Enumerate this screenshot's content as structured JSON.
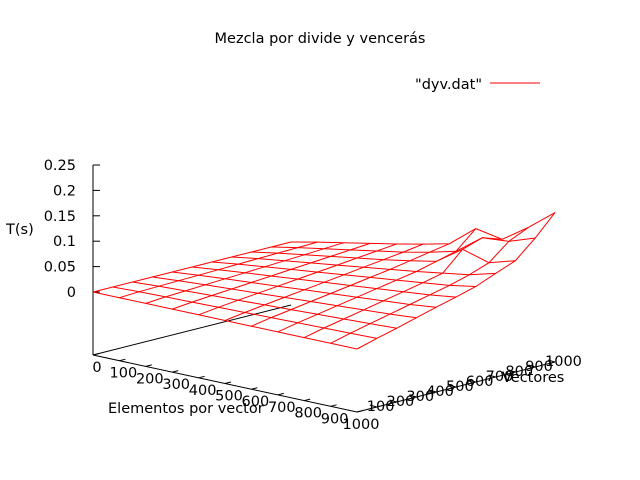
{
  "chart_data": {
    "type": "surface",
    "title": "Mezcla por divide y vencerás",
    "xlabel": "Elementos por vector",
    "ylabel": "Vectores",
    "zlabel": "T(s)",
    "xlim": [
      0,
      1000
    ],
    "ylim": [
      0,
      1000
    ],
    "zlim": [
      0,
      0.25
    ],
    "x_ticks": [
      "0",
      "100",
      "200",
      "300",
      "400",
      "500",
      "600",
      "700",
      "800",
      "900",
      "1000"
    ],
    "y_ticks": [
      "100",
      "200",
      "300",
      "400",
      "500",
      "600",
      "700",
      "800",
      "900",
      "1000"
    ],
    "z_ticks": [
      "0",
      "0.05",
      "0.1",
      "0.15",
      "0.2",
      "0.25"
    ],
    "legend_position": "top-right",
    "grid": false,
    "series": [
      {
        "name": "\"dyv.dat\"",
        "color": "#ff0000",
        "x": [
          0,
          100,
          200,
          300,
          400,
          500,
          600,
          700,
          800,
          900,
          1000
        ],
        "y": [
          0,
          100,
          200,
          300,
          400,
          500,
          600,
          700,
          800,
          900,
          1000
        ],
        "z": [
          [
            0.0,
            0.0,
            0.0,
            0.0,
            0.0,
            0.0,
            0.0,
            0.0,
            0.0,
            0.0,
            0.0
          ],
          [
            0.0,
            0.002,
            0.003,
            0.004,
            0.005,
            0.006,
            0.007,
            0.008,
            0.009,
            0.01,
            0.011
          ],
          [
            0.0,
            0.003,
            0.005,
            0.007,
            0.009,
            0.011,
            0.013,
            0.015,
            0.017,
            0.019,
            0.021
          ],
          [
            0.0,
            0.004,
            0.007,
            0.01,
            0.013,
            0.016,
            0.019,
            0.022,
            0.025,
            0.028,
            0.032
          ],
          [
            0.0,
            0.005,
            0.009,
            0.013,
            0.017,
            0.021,
            0.025,
            0.029,
            0.033,
            0.037,
            0.043
          ],
          [
            0.0,
            0.006,
            0.011,
            0.016,
            0.021,
            0.026,
            0.031,
            0.036,
            0.041,
            0.046,
            0.053
          ],
          [
            0.0,
            0.007,
            0.013,
            0.019,
            0.025,
            0.031,
            0.037,
            0.043,
            0.049,
            0.055,
            0.064
          ],
          [
            0.0,
            0.008,
            0.015,
            0.022,
            0.029,
            0.036,
            0.043,
            0.05,
            0.058,
            0.066,
            0.08
          ],
          [
            0.0,
            0.009,
            0.017,
            0.025,
            0.033,
            0.041,
            0.05,
            0.06,
            0.095,
            0.08,
            0.095
          ],
          [
            0.0,
            0.01,
            0.019,
            0.028,
            0.037,
            0.046,
            0.057,
            0.07,
            0.108,
            0.112,
            0.13
          ],
          [
            0.0,
            0.011,
            0.021,
            0.031,
            0.041,
            0.052,
            0.064,
            0.105,
            0.095,
            0.13,
            0.17
          ]
        ]
      }
    ]
  }
}
